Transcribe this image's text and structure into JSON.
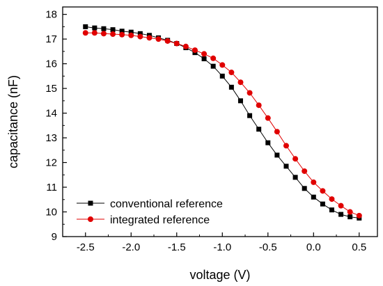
{
  "chart_data": {
    "type": "line",
    "title": "",
    "xlabel": "voltage (V)",
    "ylabel": "capacitance (nF)",
    "xlim": [
      -2.75,
      0.7
    ],
    "ylim": [
      9,
      18.3
    ],
    "xticks": [
      -2.5,
      -2.0,
      -1.5,
      -1.0,
      -0.5,
      0.0,
      0.5
    ],
    "xtick_labels": [
      "-2.5",
      "-2.0",
      "-1.5",
      "-1.0",
      "-0.5",
      "0.0",
      "0.5"
    ],
    "yticks": [
      9,
      10,
      11,
      12,
      13,
      14,
      15,
      16,
      17,
      18
    ],
    "ytick_labels": [
      "9",
      "10",
      "11",
      "12",
      "13",
      "14",
      "15",
      "16",
      "17",
      "18"
    ],
    "grid": false,
    "legend_position": "bottom-left",
    "series": [
      {
        "name": "conventional reference",
        "color": "#000000",
        "marker": "square",
        "x": [
          -2.5,
          -2.4,
          -2.3,
          -2.2,
          -2.1,
          -2.0,
          -1.9,
          -1.8,
          -1.7,
          -1.6,
          -1.5,
          -1.4,
          -1.3,
          -1.2,
          -1.1,
          -1.0,
          -0.9,
          -0.8,
          -0.7,
          -0.6,
          -0.5,
          -0.4,
          -0.3,
          -0.2,
          -0.1,
          0.0,
          0.1,
          0.2,
          0.3,
          0.4,
          0.5
        ],
        "values": [
          17.5,
          17.45,
          17.42,
          17.38,
          17.32,
          17.28,
          17.22,
          17.15,
          17.05,
          16.95,
          16.82,
          16.65,
          16.45,
          16.2,
          15.9,
          15.5,
          15.05,
          14.5,
          13.9,
          13.35,
          12.8,
          12.3,
          11.85,
          11.4,
          10.95,
          10.6,
          10.32,
          10.08,
          9.9,
          9.8,
          9.75
        ]
      },
      {
        "name": "integrated reference",
        "color": "#e00000",
        "marker": "circle",
        "x": [
          -2.5,
          -2.4,
          -2.3,
          -2.2,
          -2.1,
          -2.0,
          -1.9,
          -1.8,
          -1.7,
          -1.6,
          -1.5,
          -1.4,
          -1.3,
          -1.2,
          -1.1,
          -1.0,
          -0.9,
          -0.8,
          -0.7,
          -0.6,
          -0.5,
          -0.4,
          -0.3,
          -0.2,
          -0.1,
          0.0,
          0.1,
          0.2,
          0.3,
          0.4,
          0.5
        ],
        "values": [
          17.25,
          17.25,
          17.22,
          17.2,
          17.18,
          17.15,
          17.1,
          17.05,
          17.0,
          16.92,
          16.82,
          16.7,
          16.55,
          16.4,
          16.22,
          15.95,
          15.65,
          15.25,
          14.82,
          14.32,
          13.8,
          13.25,
          12.68,
          12.15,
          11.65,
          11.2,
          10.85,
          10.52,
          10.25,
          10.0,
          9.85
        ]
      }
    ]
  }
}
